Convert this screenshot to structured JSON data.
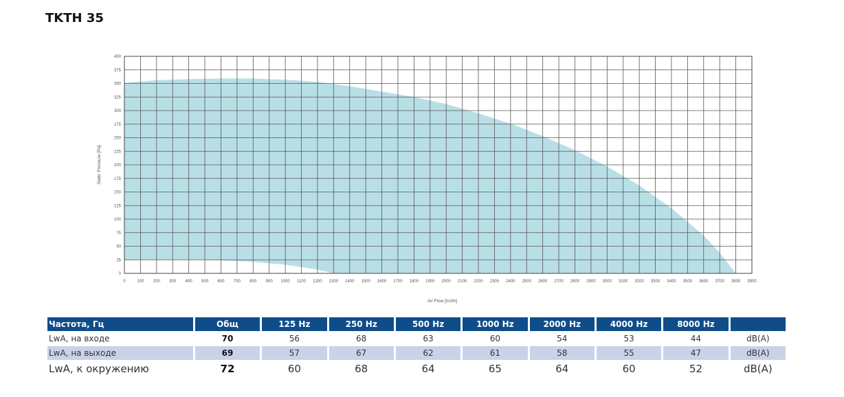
{
  "title": "TKTH 35",
  "chart_data": {
    "type": "area",
    "xlabel": "Air Flow [m3/h]",
    "ylabel": "Static Pressure [Pa]",
    "xlim": [
      0,
      3900
    ],
    "ylim": [
      0,
      400
    ],
    "x_ticks": [
      0,
      100,
      200,
      300,
      400,
      500,
      600,
      700,
      800,
      900,
      1000,
      1100,
      1200,
      1300,
      1400,
      1500,
      1600,
      1700,
      1800,
      1900,
      2000,
      2100,
      2200,
      2300,
      2400,
      2500,
      2600,
      2700,
      2800,
      2900,
      3000,
      3100,
      3200,
      3300,
      3400,
      3500,
      3600,
      3700,
      3800,
      3900
    ],
    "y_ticks": [
      0,
      25,
      50,
      75,
      100,
      125,
      150,
      175,
      200,
      225,
      250,
      275,
      300,
      325,
      350,
      375,
      400
    ],
    "grid": true,
    "fill_color": "#b9dfe6",
    "upper_curve": {
      "x": [
        0,
        200,
        400,
        600,
        800,
        1000,
        1200,
        1400,
        1600,
        1800,
        2000,
        2200,
        2400,
        2600,
        2800,
        3000,
        3200,
        3400,
        3600,
        3700,
        3800
      ],
      "y": [
        351,
        356,
        358,
        359,
        359,
        357,
        353,
        345,
        335,
        325,
        312,
        295,
        276,
        253,
        227,
        197,
        162,
        120,
        70,
        38,
        0
      ]
    },
    "lower_curve": {
      "x": [
        0,
        200,
        400,
        600,
        800,
        1000,
        1200,
        1300
      ],
      "y": [
        24,
        25,
        25,
        24,
        21,
        16,
        7,
        0
      ]
    }
  },
  "table": {
    "header": [
      "Частота, Гц",
      "Общ",
      "125 Hz",
      "250 Hz",
      "500 Hz",
      "1000 Hz",
      "2000 Hz",
      "4000 Hz",
      "8000 Hz",
      ""
    ],
    "rows": [
      {
        "label": "LwA, на входе",
        "total": "70",
        "values": [
          "56",
          "68",
          "63",
          "60",
          "54",
          "53",
          "44"
        ],
        "unit": "dB(A)"
      },
      {
        "label": "LwA, на выходе",
        "total": "69",
        "values": [
          "57",
          "67",
          "62",
          "61",
          "58",
          "55",
          "47"
        ],
        "unit": "dB(A)"
      },
      {
        "label": "LwA, к окружению",
        "total": "72",
        "values": [
          "60",
          "68",
          "64",
          "65",
          "64",
          "60",
          "52"
        ],
        "unit": "dB(A)"
      }
    ]
  }
}
